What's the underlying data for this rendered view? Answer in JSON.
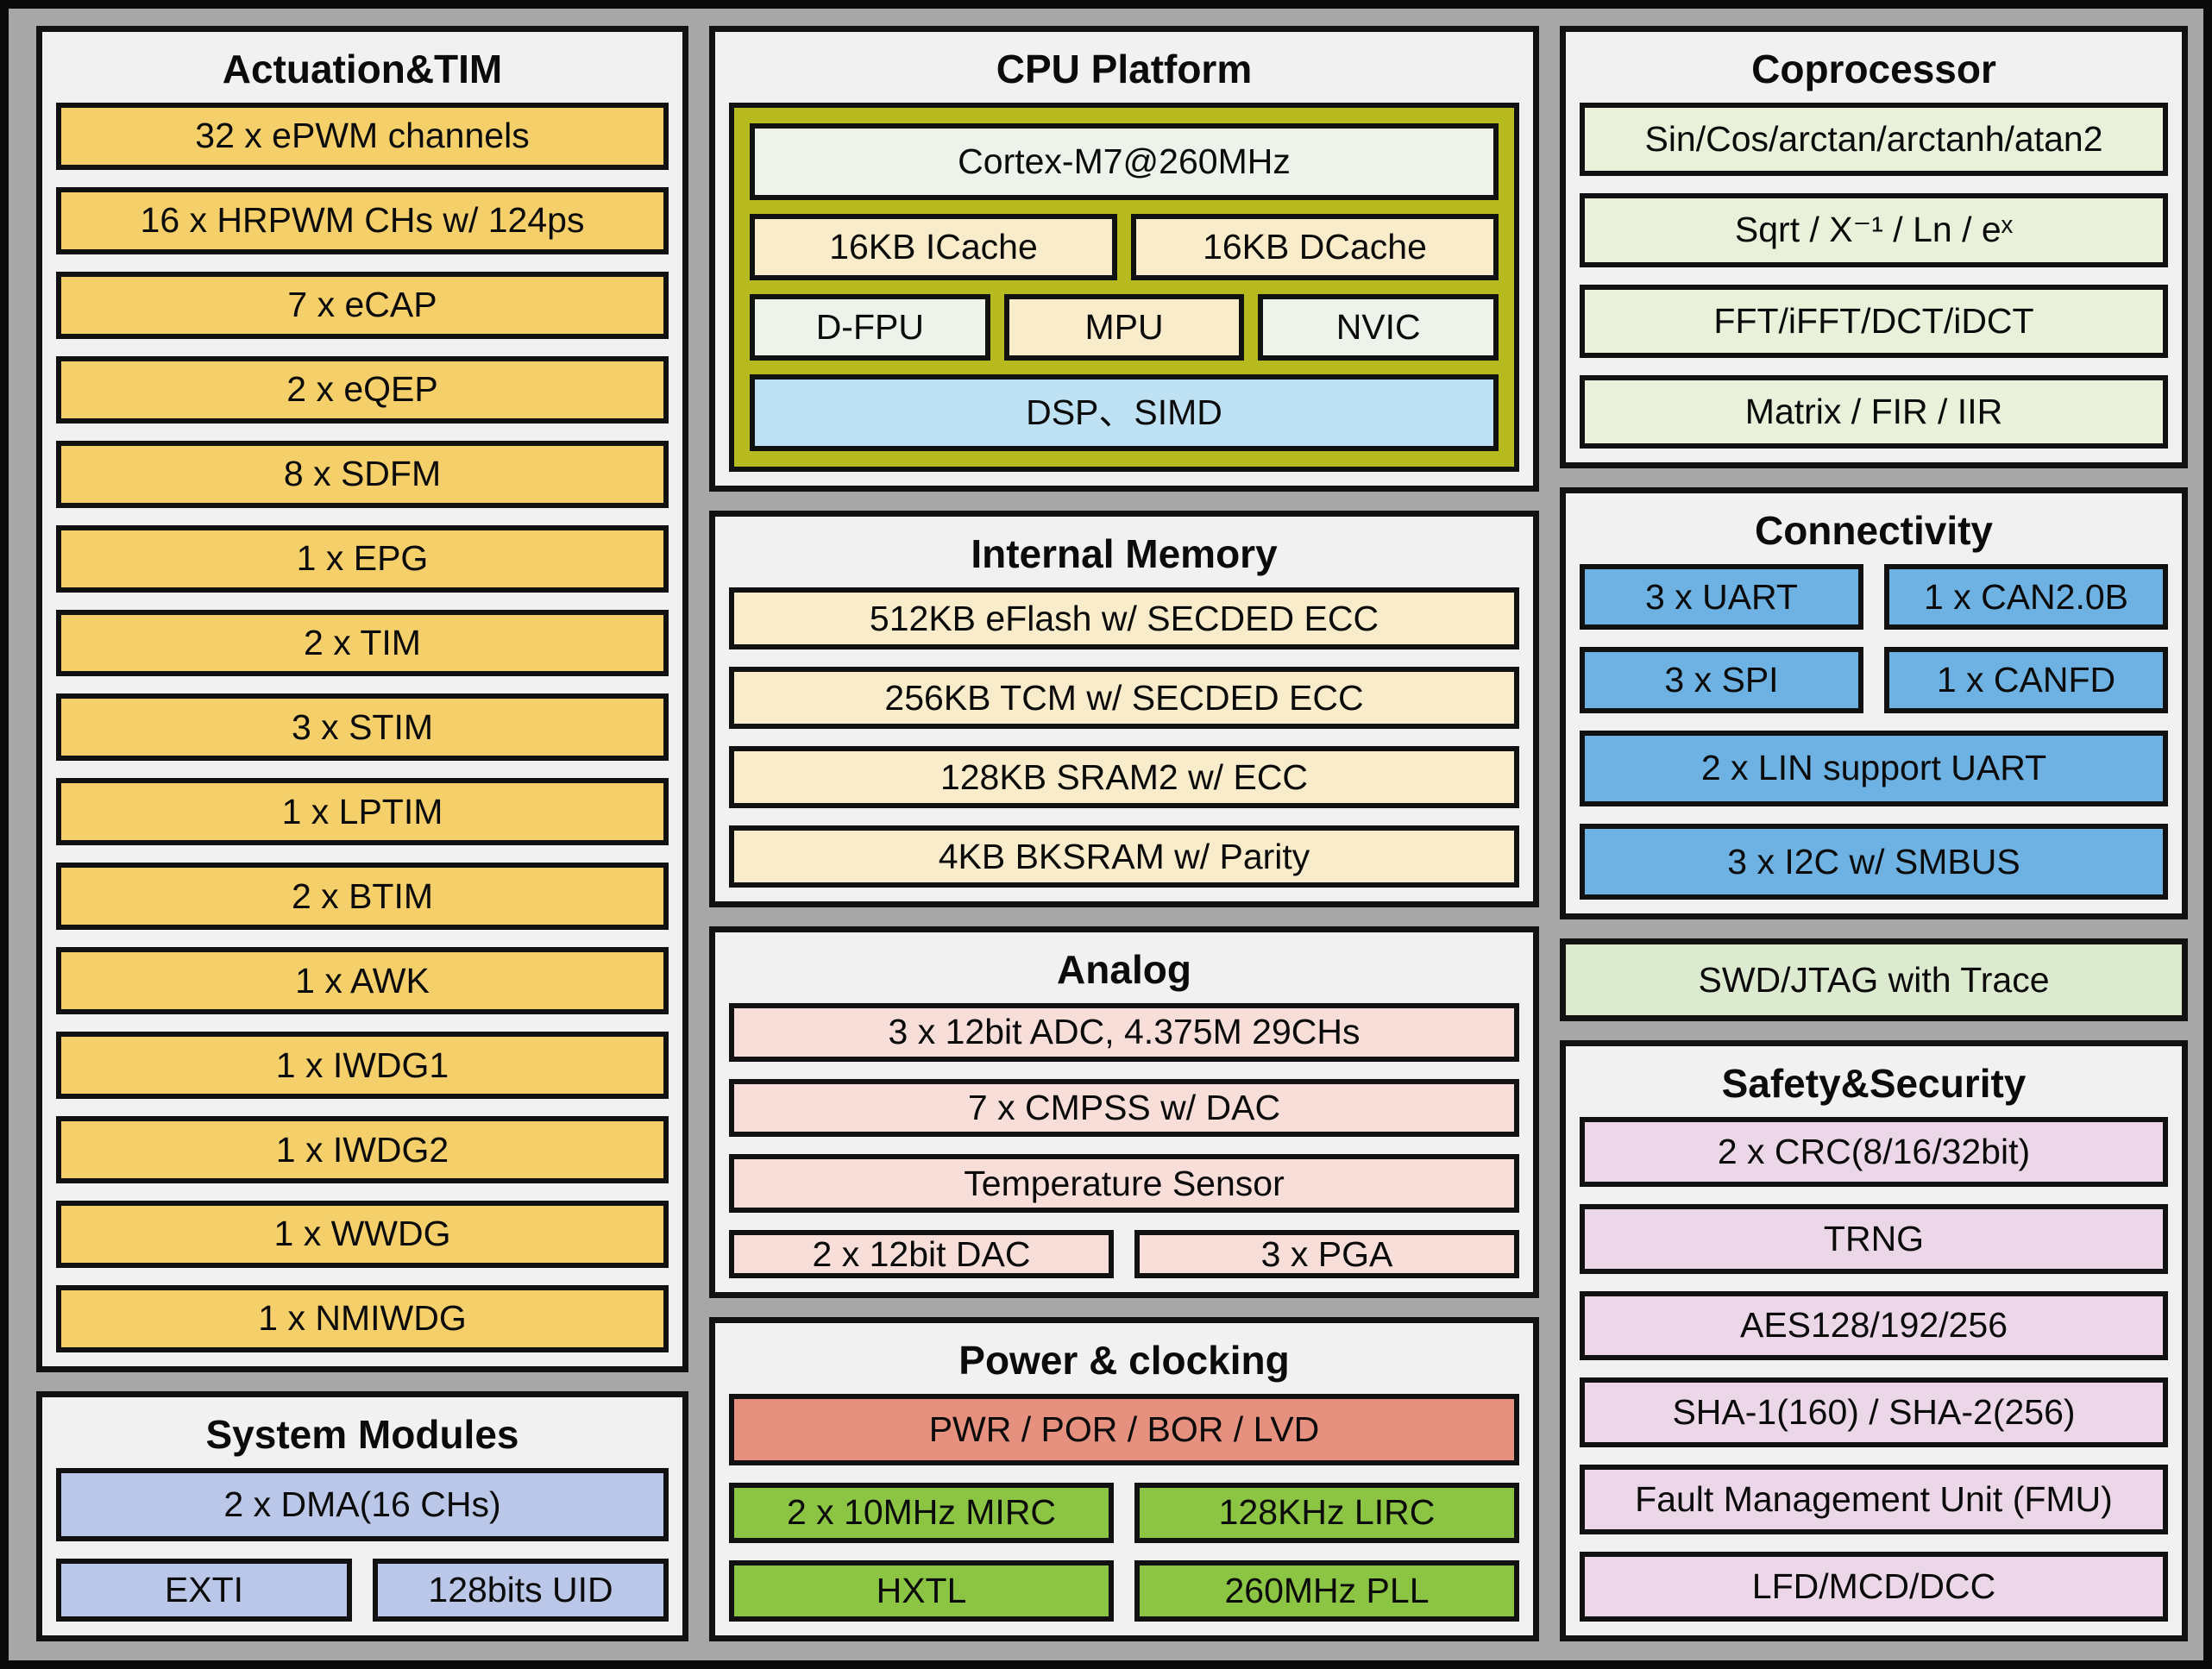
{
  "colors": {
    "frame": "#0a0a0a",
    "background": "#a7a7a7",
    "panel_bg": "#f1f1f1",
    "line": "#111111",
    "yellow": "#f5d06a",
    "lavender": "#bac7e8",
    "olive": "#b6ba1f",
    "mint": "#edf3ea",
    "cream": "#f9eccb",
    "sky": "#bfe1f4",
    "pale_green": "#e9f1db",
    "debug_green": "#dcead0",
    "pink": "#f7ded9",
    "salmon": "#e6917f",
    "green": "#8cc544",
    "blue": "#6db2e2",
    "safety_pink": "#ecd7e9"
  },
  "sections": {
    "actuation": {
      "title": "Actuation&TIM",
      "items": [
        "32 x ePWM channels",
        "16 x HRPWM CHs w/ 124ps",
        "7 x eCAP",
        "2 x eQEP",
        "8 x SDFM",
        "1 x EPG",
        "2 x TIM",
        "3 x STIM",
        "1 x LPTIM",
        "2 x BTIM",
        "1 x AWK",
        "1 x IWDG1",
        "1 x IWDG2",
        "1 x WWDG",
        "1 x NMIWDG"
      ]
    },
    "system_modules": {
      "title": "System Modules",
      "dma": "2 x DMA(16 CHs)",
      "exti": "EXTI",
      "uid": "128bits UID"
    },
    "cpu_platform": {
      "title": "CPU Platform",
      "core": "Cortex-M7@260MHz",
      "icache": "16KB ICache",
      "dcache": "16KB DCache",
      "dfpu": "D-FPU",
      "mpu": "MPU",
      "nvic": "NVIC",
      "dsp_simd": "DSP、SIMD"
    },
    "internal_memory": {
      "title": "Internal Memory",
      "items": [
        "512KB eFlash w/ SECDED ECC",
        "256KB TCM w/ SECDED ECC",
        "128KB SRAM2 w/ ECC",
        "4KB BKSRAM w/ Parity"
      ]
    },
    "analog": {
      "title": "Analog",
      "adc": "3 x 12bit ADC, 4.375M 29CHs",
      "cmpss": "7 x CMPSS w/ DAC",
      "temp_sensor": "Temperature Sensor",
      "dac": "2 x 12bit DAC",
      "pga": "3 x PGA"
    },
    "power_clocking": {
      "title": "Power & clocking",
      "pwr": "PWR / POR / BOR / LVD",
      "mirc": "2 x 10MHz MIRC",
      "lirc": "128KHz LIRC",
      "hxtl": "HXTL",
      "pll": "260MHz PLL"
    },
    "coprocessor": {
      "title": "Coprocessor",
      "items": [
        "Sin/Cos/arctan/arctanh/atan2",
        "Sqrt / X⁻¹ / Ln / eˣ",
        "FFT/iFFT/DCT/iDCT",
        "Matrix / FIR / IIR"
      ]
    },
    "connectivity": {
      "title": "Connectivity",
      "uart": "3 x UART",
      "can20b": "1 x CAN2.0B",
      "spi": "3 x SPI",
      "canfd": "1 x CANFD",
      "lin": "2 x LIN support UART",
      "i2c": "3 x I2C w/ SMBUS"
    },
    "debug": {
      "label": "SWD/JTAG with Trace"
    },
    "safety_security": {
      "title": "Safety&Security",
      "items": [
        "2 x CRC(8/16/32bit)",
        "TRNG",
        "AES128/192/256",
        "SHA-1(160) / SHA-2(256)",
        "Fault Management Unit (FMU)",
        "LFD/MCD/DCC"
      ]
    }
  }
}
